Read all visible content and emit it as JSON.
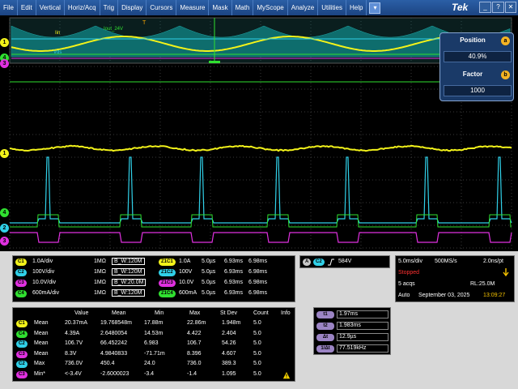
{
  "menu": {
    "items": [
      "File",
      "Edit",
      "Vertical",
      "Horiz/Acq",
      "Trig",
      "Display",
      "Cursors",
      "Measure",
      "Mask",
      "Math",
      "MyScope",
      "Analyze",
      "Utilities",
      "Help"
    ],
    "dropdown_glyph": "▾"
  },
  "brand": "Tek",
  "window_buttons": [
    "_",
    "?",
    "✕"
  ],
  "scope": {
    "labels": {
      "iin": "Iin",
      "iout": "Iout_24V",
      "vds": "Vds"
    },
    "channel_markers": [
      "1",
      "4",
      "3",
      "1",
      "4",
      "2",
      "3"
    ],
    "trigger_marker": "T",
    "colors": {
      "ch1": "#f2f21a",
      "ch2": "#30d0e8",
      "ch3": "#e030e0",
      "ch4": "#30e030",
      "grid": "#3a3a3a"
    }
  },
  "overlay": {
    "position_title": "Position",
    "position_value": "40.9%",
    "position_badge": "a",
    "factor_title": "Factor",
    "factor_value": "1000",
    "factor_badge": "b"
  },
  "channels": [
    {
      "chip": "C1",
      "scale": "1.0A/div",
      "imp": "1MΩ",
      "bw": "B_W:120M",
      "zoom": "Z1C1",
      "zscale": "1.0A",
      "ztime": "5.0µs",
      "t1": "6.93ms",
      "t2": "6.98ms"
    },
    {
      "chip": "C2",
      "scale": "100V/div",
      "imp": "1MΩ",
      "bw": "B_W:120M",
      "zoom": "Z1C2",
      "zscale": "100V",
      "ztime": "5.0µs",
      "t1": "6.93ms",
      "t2": "6.98ms"
    },
    {
      "chip": "C3",
      "scale": "10.0V/div",
      "imp": "1MΩ",
      "bw": "B_W:20.0M",
      "zoom": "Z1C3",
      "zscale": "10.0V",
      "ztime": "5.0µs",
      "t1": "6.93ms",
      "t2": "6.98ms"
    },
    {
      "chip": "C4",
      "scale": "600mA/div",
      "imp": "1MΩ",
      "bw": "B_W:120M",
      "zoom": "Z1C4",
      "zscale": "600mA",
      "ztime": "5.0µs",
      "t1": "6.93ms",
      "t2": "6.98ms"
    }
  ],
  "trigger": {
    "source": "C2",
    "level": "584V"
  },
  "acquisition": {
    "timebase": "5.0ms/div",
    "rate": "500MS/s",
    "resolution": "2.0ns/pt",
    "state": "Stopped",
    "acqs": "5 acqs",
    "rl": "RL:25.0M",
    "mode": "Auto",
    "date": "September 03, 2025",
    "time": "13:09:27"
  },
  "measurements": {
    "headers": [
      "Value",
      "Mean",
      "Min",
      "Max",
      "St Dev",
      "Count",
      "Info"
    ],
    "rows": [
      {
        "chip": "C1",
        "type": "Mean",
        "value": "20.37mA",
        "mean": "19.768548m",
        "min": "17.88m",
        "max": "22.86m",
        "stdev": "1.948m",
        "count": "5.0"
      },
      {
        "chip": "C4",
        "type": "Mean",
        "value": "4.39A",
        "mean": "2.6480054",
        "min": "14.53m",
        "max": "4.422",
        "stdev": "2.404",
        "count": "5.0"
      },
      {
        "chip": "C2",
        "type": "Mean",
        "value": "106.7V",
        "mean": "66.452242",
        "min": "6.983",
        "max": "106.7",
        "stdev": "54.26",
        "count": "5.0"
      },
      {
        "chip": "C3",
        "type": "Mean",
        "value": "8.3V",
        "mean": "4.9840833",
        "min": "-71.71m",
        "max": "8.396",
        "stdev": "4.607",
        "count": "5.0"
      },
      {
        "chip": "C2",
        "type": "Max",
        "value": "736.0V",
        "mean": "450.4",
        "min": "24.0",
        "max": "736.0",
        "stdev": "389.3",
        "count": "5.0"
      },
      {
        "chip": "C3",
        "type": "Min*",
        "value": "<-3.4V",
        "mean": "-2.6000023",
        "min": "-3.4",
        "max": "-1.4",
        "stdev": "1.095",
        "count": "5.0"
      }
    ]
  },
  "cursors": [
    {
      "label": "t1",
      "value": "1.97ms"
    },
    {
      "label": "t2",
      "value": "1.983ms"
    },
    {
      "label": "Δt",
      "value": "12.9µs"
    },
    {
      "label": "1/Δt",
      "value": "77.519kHz"
    }
  ]
}
